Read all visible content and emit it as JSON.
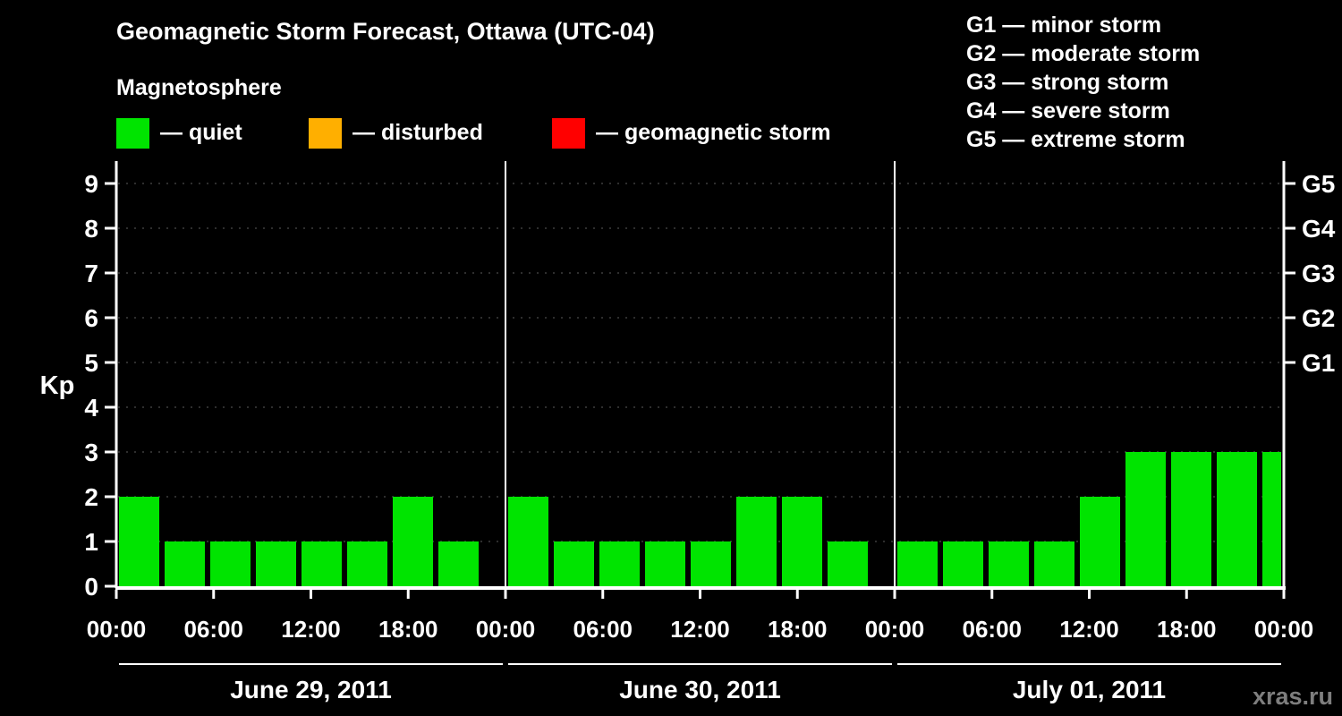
{
  "header": {
    "title": "Geomagnetic Storm Forecast, Ottawa (UTC-04)",
    "subtitle": "Magnetosphere"
  },
  "legend": {
    "items": [
      {
        "label": "— quiet",
        "color": "#00e400"
      },
      {
        "label": "— disturbed",
        "color": "#ffaf00"
      },
      {
        "label": "— geomagnetic storm",
        "color": "#ff0000"
      }
    ]
  },
  "storm_scale": [
    "G1 — minor storm",
    "G2 — moderate storm",
    "G3 — strong storm",
    "G4 — severe storm",
    "G5 — extreme storm"
  ],
  "watermark": "xras.ru",
  "chart_data": {
    "type": "bar",
    "title": "Geomagnetic Storm Forecast, Ottawa (UTC-04)",
    "ylabel": "Kp",
    "ylim": [
      0,
      9.5
    ],
    "yticks": [
      0,
      1,
      2,
      3,
      4,
      5,
      6,
      7,
      8,
      9
    ],
    "right_axis": [
      {
        "kp": 5,
        "label": "G1"
      },
      {
        "kp": 6,
        "label": "G2"
      },
      {
        "kp": 7,
        "label": "G3"
      },
      {
        "kp": 8,
        "label": "G4"
      },
      {
        "kp": 9,
        "label": "G5"
      }
    ],
    "x_tick_labels": [
      "00:00",
      "06:00",
      "12:00",
      "18:00",
      "00:00",
      "06:00",
      "12:00",
      "18:00",
      "00:00",
      "06:00",
      "12:00",
      "18:00",
      "00:00"
    ],
    "interval_hours": 3,
    "days": [
      {
        "date": "June 29, 2011",
        "kp": [
          2,
          1,
          1,
          1,
          1,
          1,
          2,
          1
        ]
      },
      {
        "date": "June 30, 2011",
        "kp": [
          2,
          1,
          1,
          1,
          1,
          2,
          2,
          1
        ]
      },
      {
        "date": "July 01, 2011",
        "kp": [
          1,
          1,
          1,
          1,
          2,
          3,
          3,
          3
        ]
      }
    ],
    "partial_next_interval_kp": 3,
    "colors": {
      "quiet": "#00e400",
      "disturbed": "#ffaf00",
      "storm": "#ff0000",
      "grid": "#5d5d5d",
      "axis": "#ffffff"
    },
    "grid": "dotted horizontal lines at each Kp level",
    "legend_position": "top-left"
  }
}
